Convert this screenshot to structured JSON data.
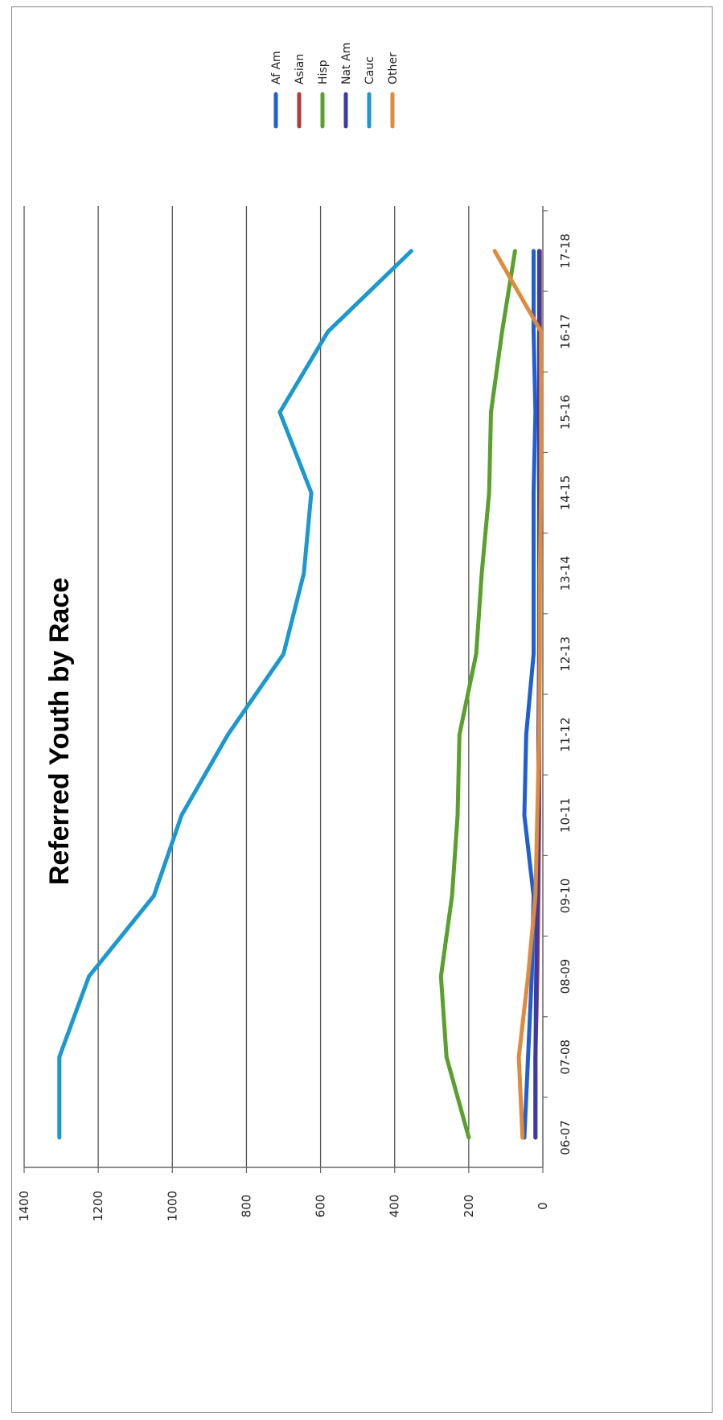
{
  "chart_data": {
    "type": "line",
    "title": "Referred Youth by Race",
    "categories": [
      "06-07",
      "07-08",
      "08-09",
      "09-10",
      "10-11",
      "11-12",
      "12-13",
      "13-14",
      "14-15",
      "15-16",
      "16-17",
      "17-18"
    ],
    "ylim": [
      0,
      1400
    ],
    "yticks": [
      0,
      200,
      400,
      600,
      800,
      1000,
      1200,
      1400
    ],
    "grid": true,
    "legend_position": "top-right",
    "orientation_note_colors": {
      "grid": "#555555",
      "frame": "#8a8a8a"
    },
    "series": [
      {
        "name": "Af Am",
        "color": "#1f5fd6",
        "values": [
          50,
          40,
          30,
          25,
          50,
          45,
          25,
          25,
          25,
          20,
          25,
          25
        ]
      },
      {
        "name": "Asian",
        "color": "#b13b3b",
        "values": [
          20,
          20,
          15,
          12,
          10,
          10,
          10,
          8,
          8,
          8,
          8,
          8
        ]
      },
      {
        "name": "Hisp",
        "color": "#5aa02c",
        "values": [
          200,
          260,
          275,
          245,
          230,
          225,
          180,
          165,
          145,
          140,
          110,
          75
        ]
      },
      {
        "name": "Nat Am",
        "color": "#3b3ba6",
        "values": [
          20,
          20,
          18,
          15,
          12,
          12,
          10,
          10,
          10,
          10,
          10,
          10
        ]
      },
      {
        "name": "Cauc",
        "color": "#1b98d0",
        "values": [
          1305,
          1305,
          1225,
          1050,
          975,
          850,
          700,
          645,
          625,
          710,
          580,
          355
        ]
      },
      {
        "name": "Other",
        "color": "#e08a3c",
        "values": [
          55,
          65,
          40,
          20,
          15,
          10,
          8,
          8,
          5,
          5,
          5,
          130
        ]
      }
    ]
  }
}
